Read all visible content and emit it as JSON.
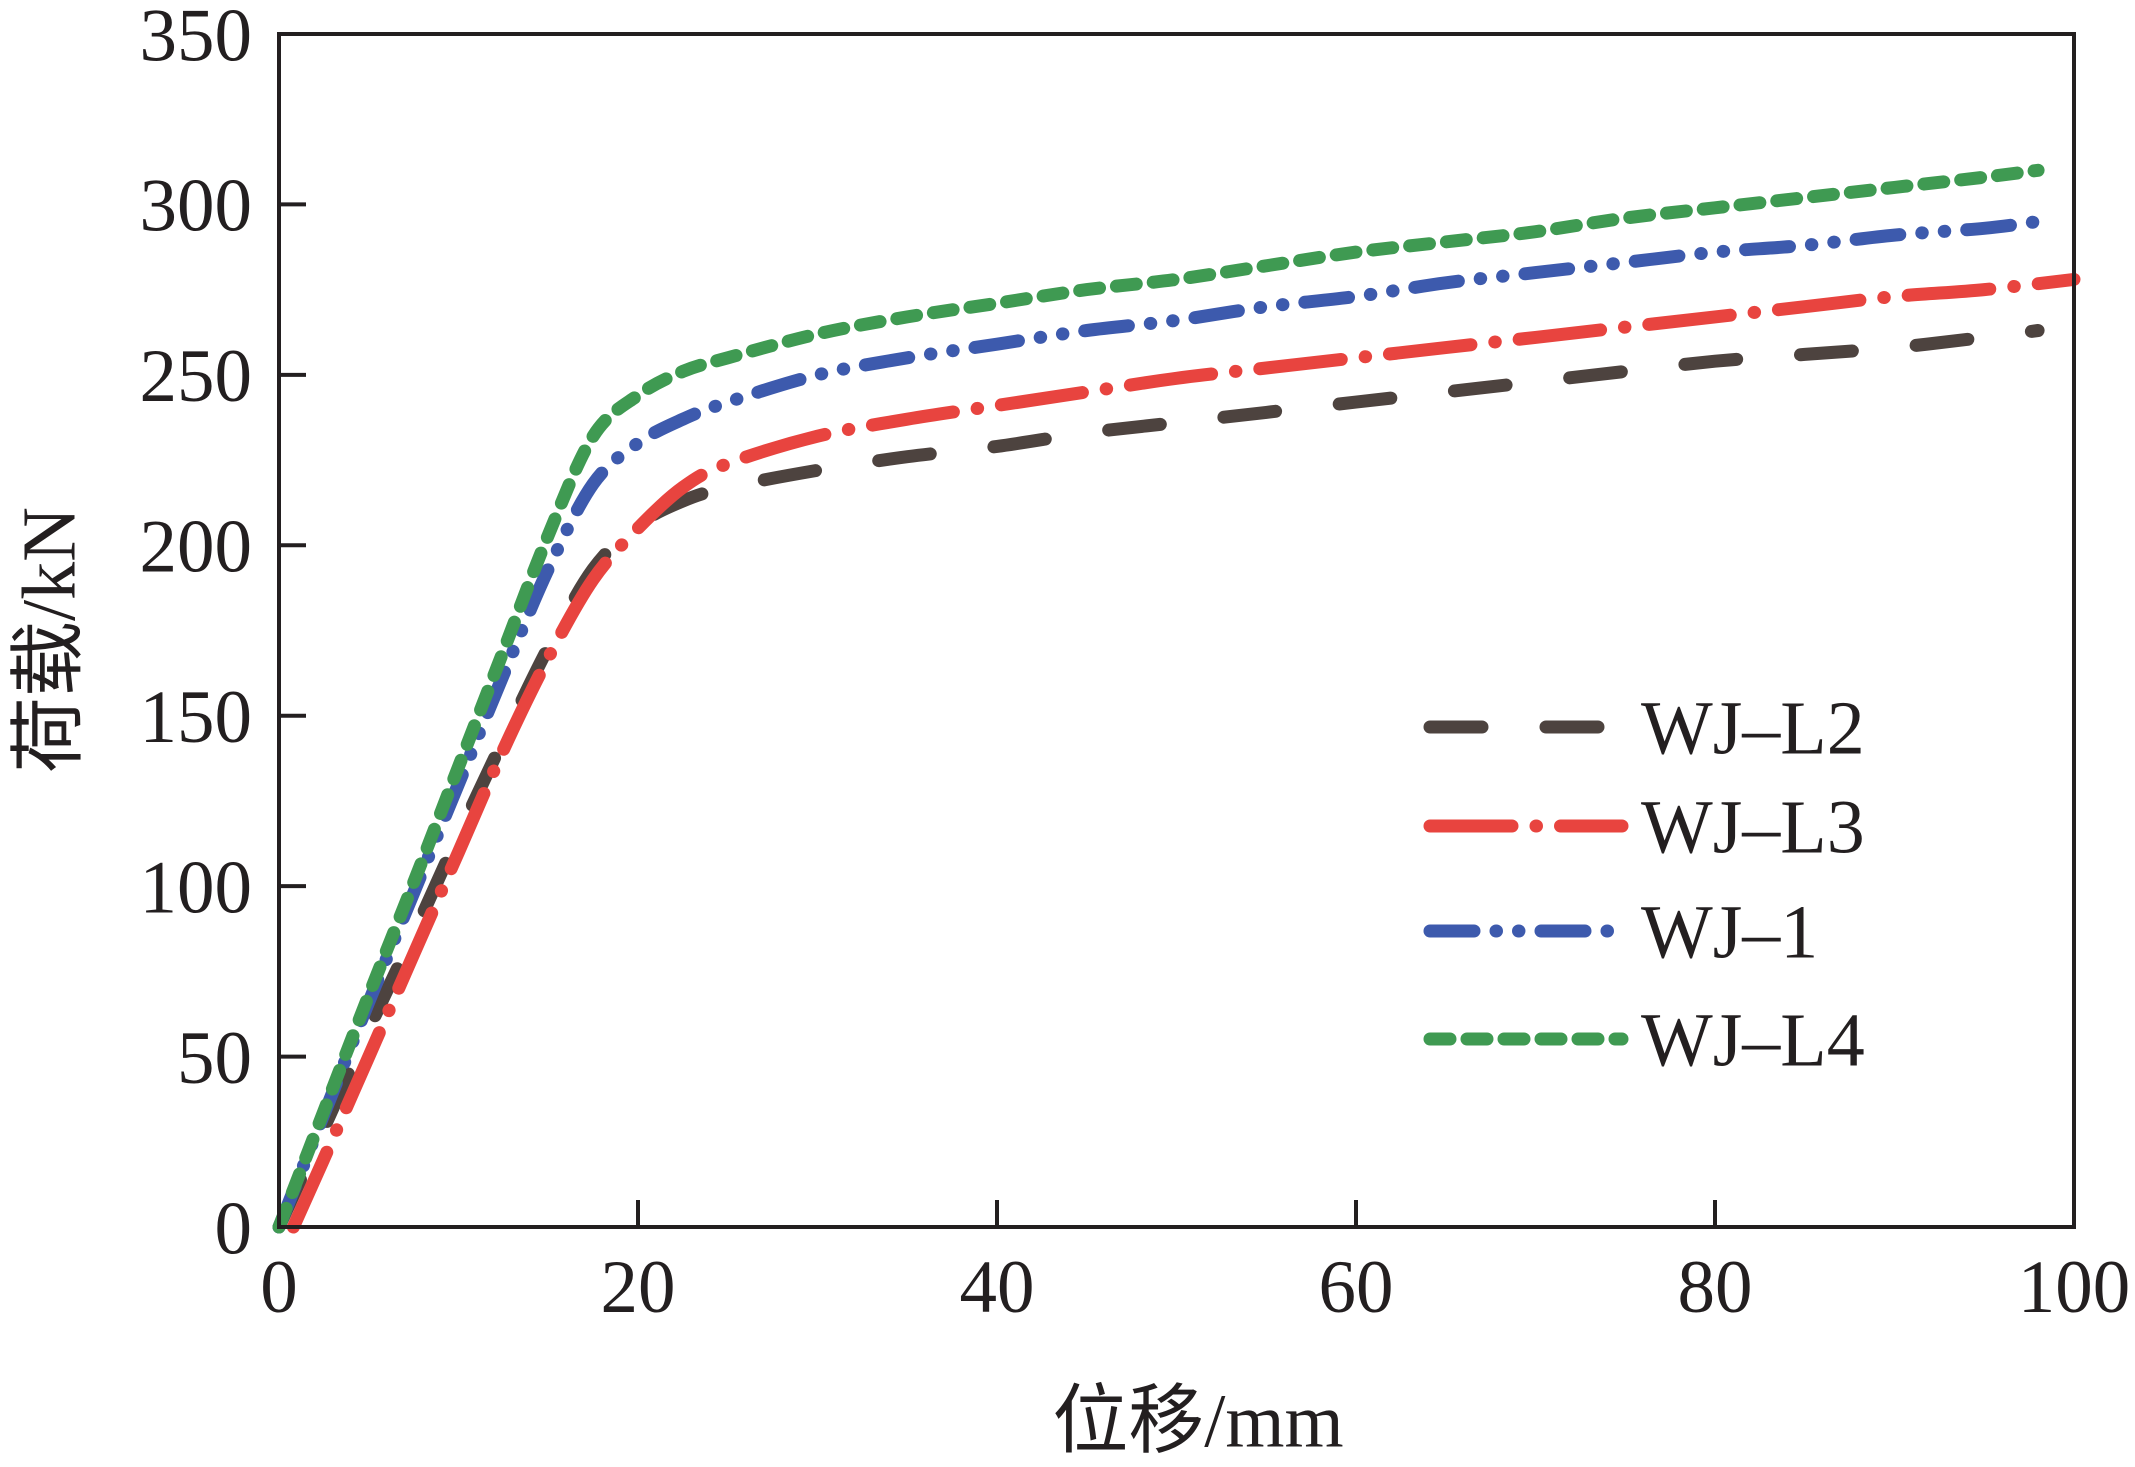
{
  "chart_data": {
    "type": "line",
    "title": "",
    "xlabel": "位移/mm",
    "ylabel": "荷载/kN",
    "xlim": [
      0,
      100
    ],
    "ylim": [
      0,
      350
    ],
    "xticks": [
      0,
      20,
      40,
      60,
      80,
      100
    ],
    "yticks": [
      0,
      50,
      100,
      150,
      200,
      250,
      300,
      350
    ],
    "grid": false,
    "legend": "right",
    "series": [
      {
        "name": "WJ–L2",
        "color": "#4d433f",
        "linestyle": "dashed",
        "x": [
          0,
          2.5,
          5,
          7.5,
          10,
          12.5,
          15,
          17.5,
          20,
          22.5,
          25,
          30,
          35,
          40,
          45,
          50,
          55,
          60,
          65,
          70,
          75,
          80,
          85,
          90,
          95,
          98
        ],
        "y": [
          0,
          29,
          58,
          86,
          115,
          143,
          170,
          193,
          206,
          213,
          217,
          222,
          226,
          229,
          233,
          236,
          239,
          242,
          245,
          248,
          251,
          254,
          256,
          258,
          261,
          263
        ]
      },
      {
        "name": "WJ–L3",
        "color": "#e8443f",
        "linestyle": "dash-dot",
        "x": [
          0.8,
          2.5,
          5,
          7.5,
          10,
          12.5,
          15,
          17.5,
          20,
          22.5,
          25,
          30,
          35,
          40,
          45,
          50,
          55,
          60,
          65,
          70,
          75,
          80,
          85,
          90,
          95,
          100
        ],
        "y": [
          0,
          20,
          50,
          80,
          110,
          140,
          167,
          190,
          205,
          217,
          224,
          232,
          237,
          241,
          245,
          249,
          252,
          255,
          258,
          261,
          264,
          267,
          270,
          273,
          275,
          278
        ]
      },
      {
        "name": "WJ–1",
        "color": "#3d5aad",
        "linestyle": "dash-dot-dot",
        "x": [
          0,
          2.5,
          5,
          7.5,
          10,
          12.5,
          15,
          17.5,
          20,
          22.5,
          25,
          30,
          35,
          40,
          45,
          50,
          55,
          60,
          65,
          70,
          75,
          80,
          85,
          90,
          95,
          98
        ],
        "y": [
          0,
          33,
          66,
          98,
          130,
          162,
          193,
          218,
          230,
          237,
          242,
          250,
          255,
          259,
          263,
          266,
          270,
          273,
          277,
          280,
          283,
          286,
          288,
          291,
          293,
          295
        ]
      },
      {
        "name": "WJ–L4",
        "color": "#3f9a52",
        "linestyle": "short-dashed",
        "x": [
          0,
          2.5,
          5,
          7.5,
          10,
          12.5,
          15,
          17.5,
          20,
          22.5,
          25,
          30,
          35,
          40,
          45,
          50,
          55,
          60,
          65,
          70,
          75,
          80,
          85,
          90,
          95,
          98
        ],
        "y": [
          0,
          34,
          68,
          101,
          135,
          169,
          203,
          232,
          244,
          251,
          255,
          262,
          267,
          271,
          275,
          278,
          282,
          286,
          289,
          292,
          296,
          299,
          302,
          305,
          308,
          310
        ]
      }
    ]
  }
}
